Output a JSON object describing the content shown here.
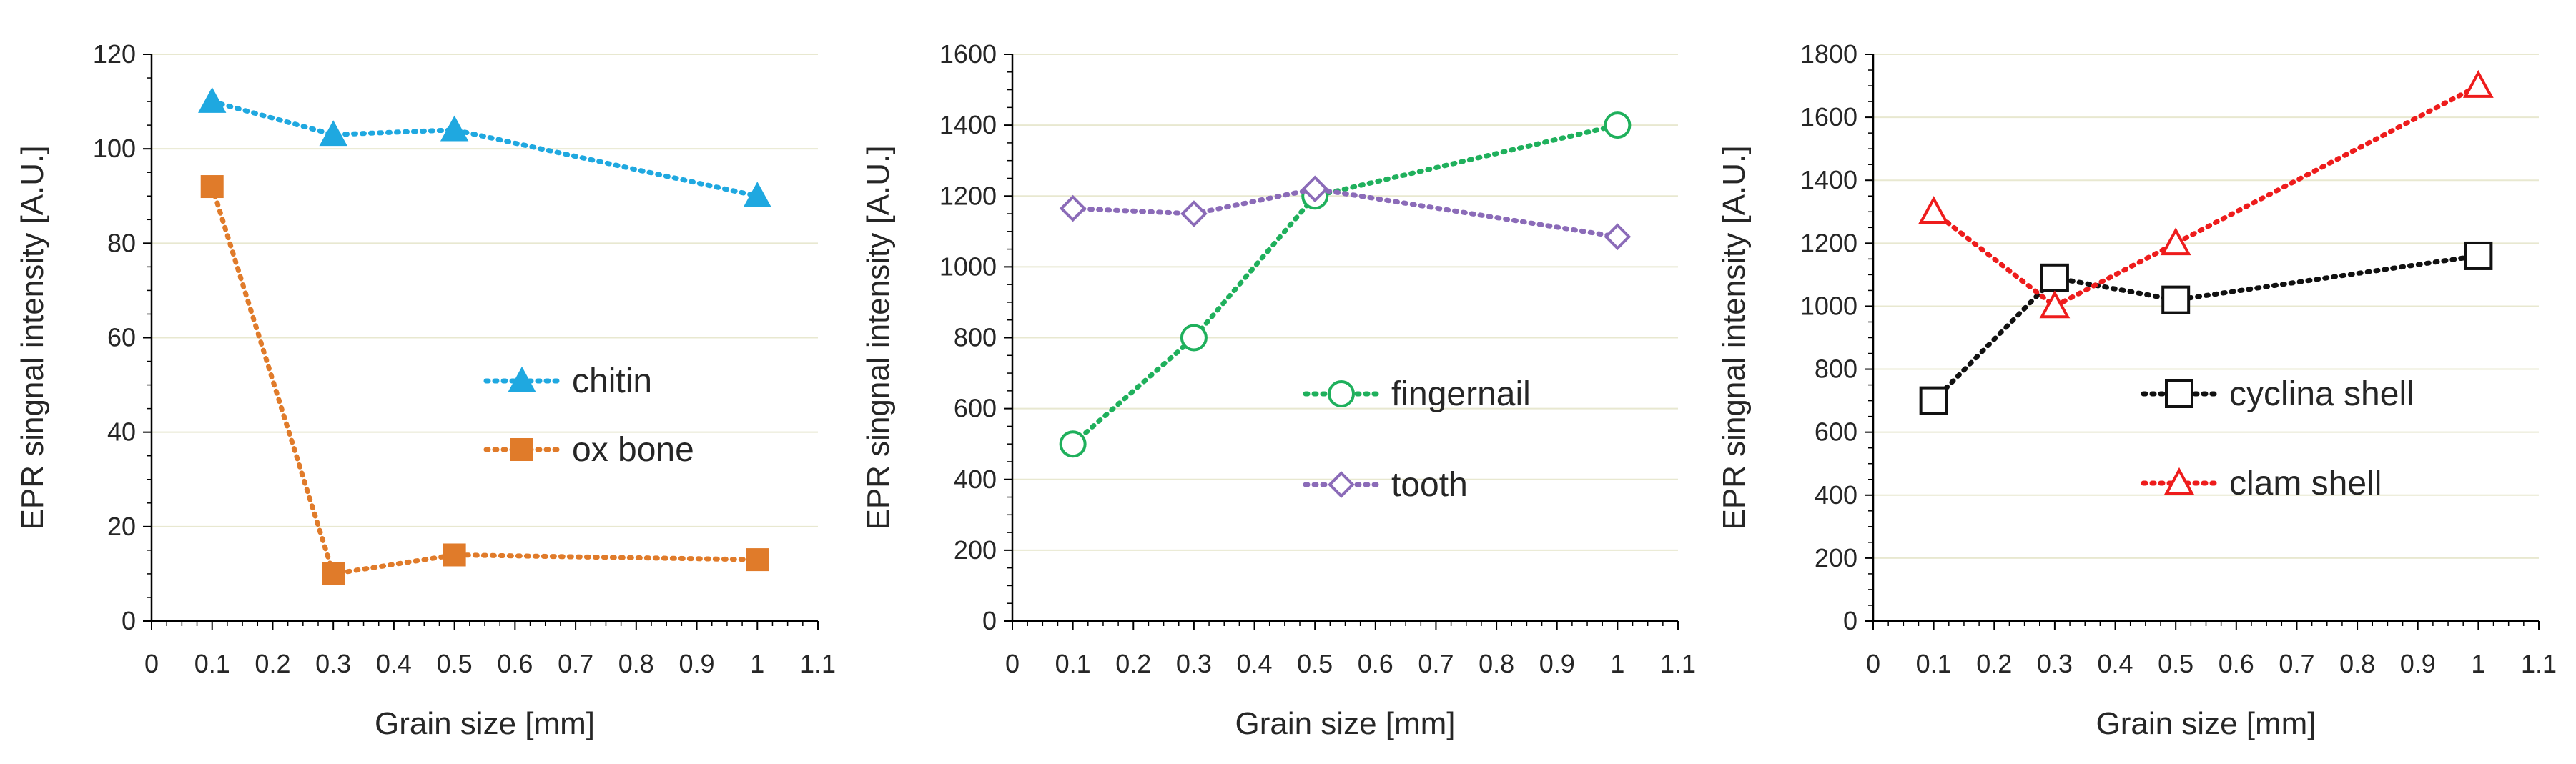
{
  "chart_data": [
    {
      "type": "line",
      "title": "",
      "xlabel": "Grain size [mm]",
      "ylabel": "EPR singnal intensity [A.U.]",
      "xlim": [
        0,
        1.1
      ],
      "ylim": [
        0,
        120
      ],
      "xticks": [
        "0",
        "0.1",
        "0.2",
        "0.3",
        "0.4",
        "0.5",
        "0.6",
        "0.7",
        "0.8",
        "0.9",
        "1",
        "1.1"
      ],
      "yticks": [
        "0",
        "20",
        "40",
        "60",
        "80",
        "100",
        "120"
      ],
      "grid": true,
      "legend_position": "center-right",
      "series": [
        {
          "name": "chitin",
          "color": "#1fa8e0",
          "marker": "triangle-filled",
          "x": [
            0.1,
            0.3,
            0.5,
            1
          ],
          "values": [
            110,
            103,
            104,
            90
          ]
        },
        {
          "name": "ox bone",
          "color": "#e07b2a",
          "marker": "square-filled",
          "x": [
            0.1,
            0.3,
            0.5,
            1
          ],
          "values": [
            92,
            10,
            14,
            13
          ]
        }
      ]
    },
    {
      "type": "line",
      "title": "",
      "xlabel": "Grain size [mm]",
      "ylabel": "EPR singnal intensity [A.U.]",
      "xlim": [
        0,
        1.1
      ],
      "ylim": [
        0,
        1600
      ],
      "xticks": [
        "0",
        "0.1",
        "0.2",
        "0.3",
        "0.4",
        "0.5",
        "0.6",
        "0.7",
        "0.8",
        "0.9",
        "1",
        "1.1"
      ],
      "yticks": [
        "0",
        "200",
        "400",
        "600",
        "800",
        "1000",
        "1200",
        "1400",
        "1600"
      ],
      "grid": true,
      "legend_position": "center-right",
      "series": [
        {
          "name": "fingernail",
          "color": "#1fb05c",
          "marker": "circle-open",
          "x": [
            0.1,
            0.3,
            0.5,
            1
          ],
          "values": [
            500,
            800,
            1200,
            1400
          ]
        },
        {
          "name": "tooth",
          "color": "#8b6bb8",
          "marker": "diamond-open",
          "x": [
            0.1,
            0.3,
            0.5,
            1
          ],
          "values": [
            1165,
            1150,
            1220,
            1085
          ]
        }
      ]
    },
    {
      "type": "line",
      "title": "",
      "xlabel": "Grain size [mm]",
      "ylabel": "EPR singnal intensity [A.U.]",
      "xlim": [
        0,
        1.1
      ],
      "ylim": [
        0,
        1800
      ],
      "xticks": [
        "0",
        "0.1",
        "0.2",
        "0.3",
        "0.4",
        "0.5",
        "0.6",
        "0.7",
        "0.8",
        "0.9",
        "1",
        "1.1"
      ],
      "yticks": [
        "0",
        "200",
        "400",
        "600",
        "800",
        "1000",
        "1200",
        "1400",
        "1600",
        "1800"
      ],
      "grid": true,
      "legend_position": "center-right",
      "series": [
        {
          "name": "cyclina shell",
          "color": "#111111",
          "marker": "square-open",
          "x": [
            0.1,
            0.3,
            0.5,
            1
          ],
          "values": [
            700,
            1090,
            1020,
            1160
          ]
        },
        {
          "name": "clam shell",
          "color": "#ee1c1c",
          "marker": "triangle-open",
          "x": [
            0.1,
            0.3,
            0.5,
            1
          ],
          "values": [
            1300,
            1000,
            1200,
            1700
          ]
        }
      ]
    }
  ]
}
